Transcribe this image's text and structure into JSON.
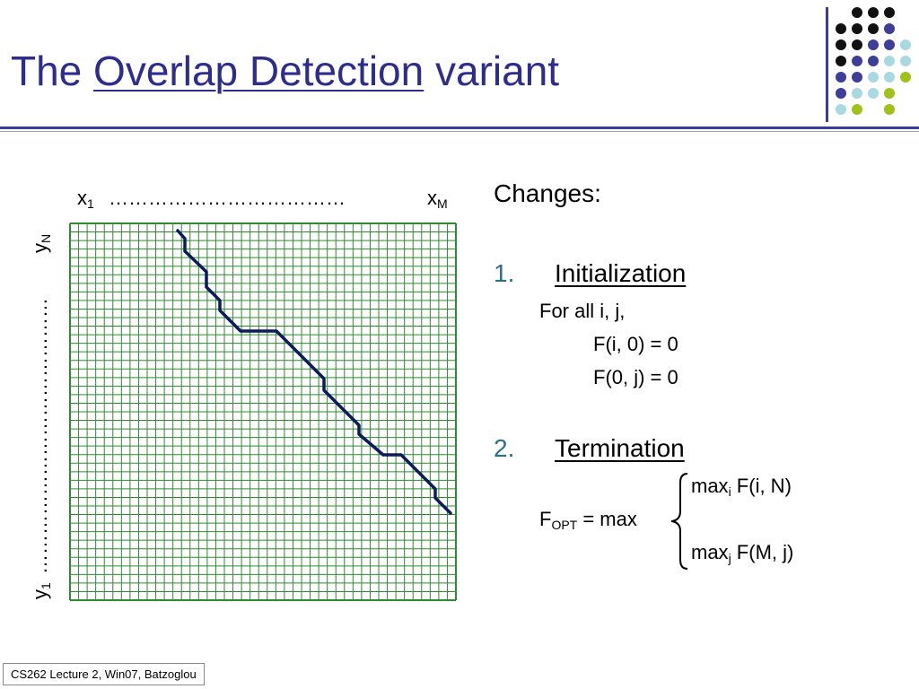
{
  "slide": {
    "title_prefix": "The ",
    "title_link": "Overlap Detection",
    "title_suffix": " variant"
  },
  "grid_figure": {
    "x_first_base": "x",
    "x_first_sub": "1",
    "x_dots": "………………………………",
    "x_last_base": "x",
    "x_last_sub": "M",
    "y_first_base": "y",
    "y_first_sub": "1",
    "y_dots": "……………………………………",
    "y_last_base": "y",
    "y_last_sub": "N"
  },
  "right_panel": {
    "changes": "Changes:",
    "item1_num": "1.",
    "item1_label": "Initialization",
    "init_line1": "For all i, j,",
    "init_line2": "F(i, 0) = 0",
    "init_line3": "F(0, j) = 0",
    "item2_num": "2.",
    "item2_label": "Termination",
    "f_opt_base": "F",
    "f_opt_sub": "OPT",
    "f_opt_rest": " = max",
    "max1_base": "max",
    "max1_sub": "i",
    "max1_rest": " F(i, N)",
    "max2_base": "max",
    "max2_sub": "j",
    "max2_rest": " F(M, j)"
  },
  "footer": {
    "text": "CS262 Lecture 2, Win07, Batzoglou"
  },
  "colors": {
    "title": "#2d2d8f",
    "grid": "#2e8b2e",
    "path": "#0d1a5c",
    "list_number": "#2a6f8f"
  }
}
